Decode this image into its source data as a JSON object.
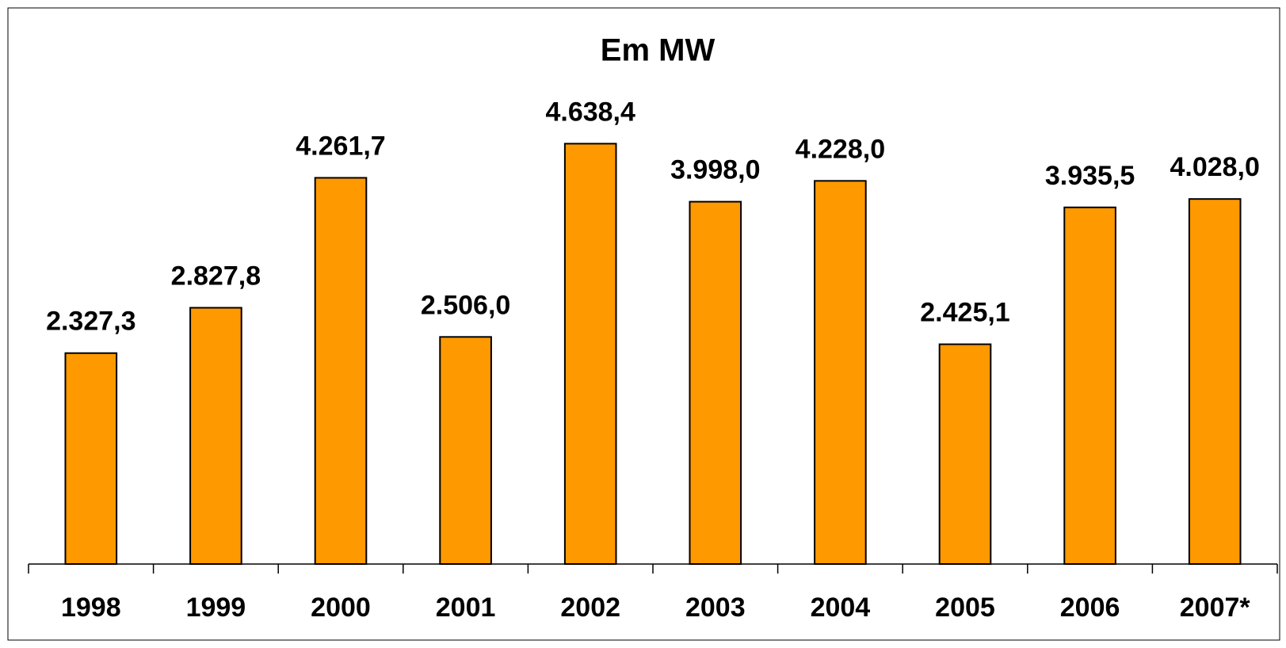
{
  "chart_data": {
    "type": "bar",
    "title": "Em MW",
    "categories": [
      "1998",
      "1999",
      "2000",
      "2001",
      "2002",
      "2003",
      "2004",
      "2005",
      "2006",
      "2007*"
    ],
    "values": [
      2327.3,
      2827.8,
      4261.7,
      2506.0,
      4638.4,
      3998.0,
      4228.0,
      2425.1,
      3935.5,
      4028.0
    ],
    "value_labels": [
      "2.327,3",
      "2.827,8",
      "4.261,7",
      "2.506,0",
      "4.638,4",
      "3.998,0",
      "4.228,0",
      "2.425,1",
      "3.935,5",
      "4.028,0"
    ],
    "color": "#ff9900",
    "ylim": [
      0,
      5000
    ]
  }
}
